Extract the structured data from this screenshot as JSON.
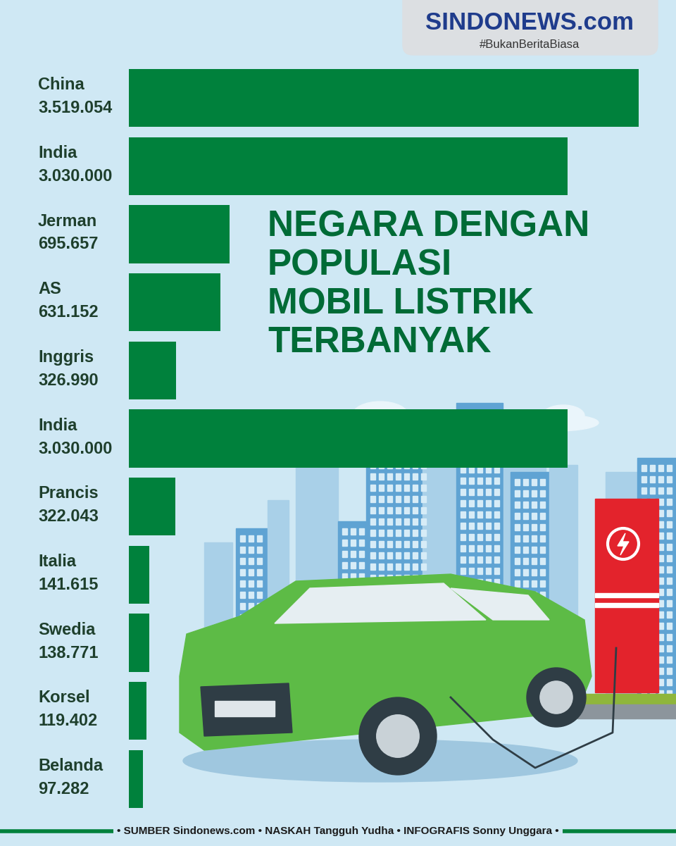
{
  "chart_data": {
    "type": "bar",
    "orientation": "horizontal",
    "title": "NEGARA DENGAN\nPOPULASI\nMOBIL LISTRIK\nTERBANYAK",
    "categories": [
      "China",
      "India",
      "Jerman",
      "AS",
      "Inggris",
      "India",
      "Prancis",
      "Italia",
      "Swedia",
      "Korsel",
      "Belanda"
    ],
    "values": [
      3519054,
      3030000,
      695657,
      631152,
      326990,
      3030000,
      322043,
      141615,
      138771,
      119402,
      97282
    ],
    "value_labels": [
      "3.519.054",
      "3.030.000",
      "695.657",
      "631.152",
      "326.990",
      "3.030.000",
      "322.043",
      "141.615",
      "138.771",
      "119.402",
      "97.282"
    ],
    "color": "#00813c",
    "xlim": [
      0,
      3519054
    ],
    "tick_labels": false,
    "data_labels": true,
    "brand": "SINDONEWS.com",
    "tagline": "#BukanBeritaBiasa",
    "footer": "• SUMBER Sindonews.com • NASKAH Tangguh Yudha • INFOGRAFIS Sonny Unggara •"
  }
}
